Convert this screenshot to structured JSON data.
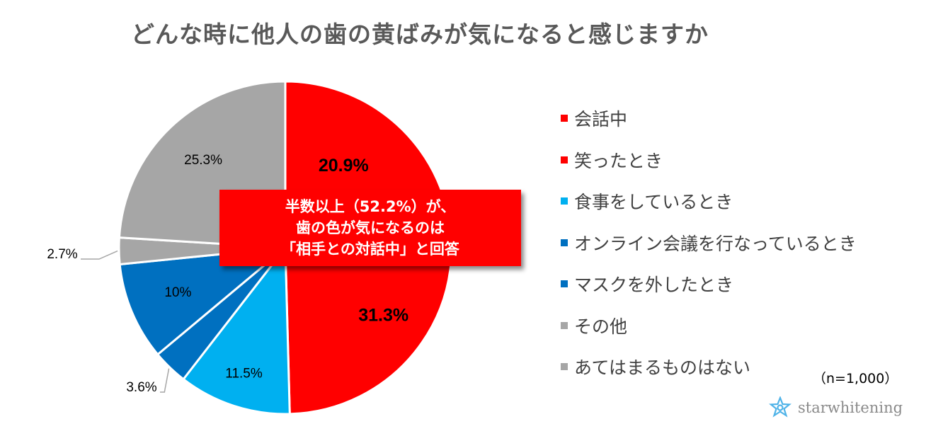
{
  "title": "どんな時に他人の歯の黄ばみが気になると感じますか",
  "callout": {
    "line1": "半数以上（52.2%）が、",
    "line2": "歯の色が気になるのは",
    "line3": "「相手との対話中」と回答"
  },
  "note": "（n=1,000）",
  "brand": {
    "name": "starwhitening",
    "icon": "star-flower-logo"
  },
  "chart_data": {
    "type": "pie",
    "title": "どんな時に他人の歯の黄ばみが気になると感じますか",
    "slices": [
      {
        "label": "会話中",
        "value": 20.9,
        "value_label": "20.9%",
        "color": "#ff0000"
      },
      {
        "label": "笑ったとき",
        "value": 31.3,
        "value_label": "31.3%",
        "color": "#ff0000"
      },
      {
        "label": "食事をしているとき",
        "value": 11.5,
        "value_label": "11.5%",
        "color": "#00b0f0"
      },
      {
        "label": "オンライン会議を行なっているとき",
        "value": 3.6,
        "value_label": "3.6%",
        "color": "#0070c0"
      },
      {
        "label": "マスクを外したとき",
        "value": 10,
        "value_label": "10%",
        "color": "#0070c0"
      },
      {
        "label": "その他",
        "value": 2.7,
        "value_label": "2.7%",
        "color": "#a6a6a6"
      },
      {
        "label": "あてはまるものはない",
        "value": 25.3,
        "value_label": "25.3%",
        "color": "#a6a6a6"
      }
    ],
    "start_angle": "12 o'clock",
    "direction": "clockwise",
    "legend_position": "right"
  }
}
